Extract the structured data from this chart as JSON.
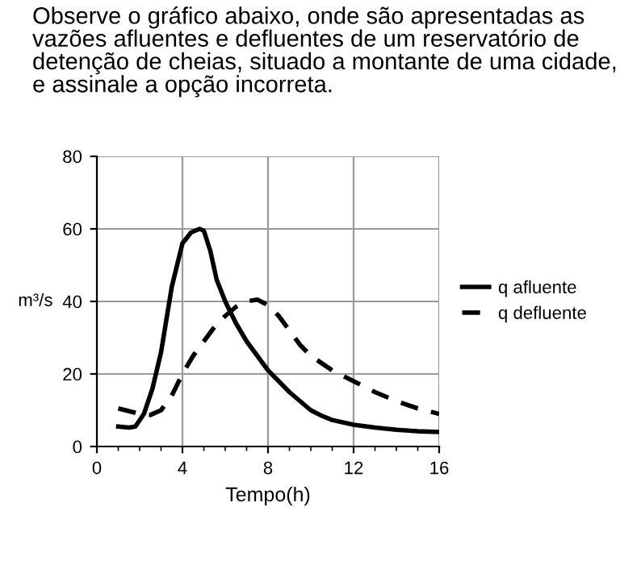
{
  "chart_data": {
    "type": "line",
    "title": "Observe o gráfico abaixo, onde são apresentadas as vazões afluentes e defluentes de um reservatório de detenção de cheias, situado a montante de uma cidade, e assinale a opção incorreta.",
    "xlabel": "Tempo(h)",
    "ylabel": "m³/s",
    "xlim": [
      0,
      16
    ],
    "xticks": [
      0,
      4,
      8,
      12,
      16
    ],
    "ylim": [
      0,
      80
    ],
    "yticks": [
      0,
      20,
      40,
      60,
      80
    ],
    "grid": true,
    "legend": "right",
    "marker": "none",
    "series": [
      {
        "name": "q afluente",
        "color": "#000000",
        "line_style": "solid",
        "x": [
          1,
          1.5,
          1.8,
          2.2,
          2.6,
          3,
          3.5,
          4,
          4.4,
          4.8,
          5,
          5.3,
          5.6,
          6,
          6.5,
          7,
          7.5,
          8,
          8.5,
          9,
          9.5,
          10,
          10.5,
          11,
          12,
          13,
          14,
          15,
          16
        ],
        "values": [
          5.5,
          5.2,
          5.5,
          9,
          16,
          26,
          44,
          56,
          59,
          60,
          59.5,
          54,
          46,
          40,
          34,
          29,
          25,
          21,
          18,
          15,
          12.5,
          10,
          8.5,
          7.3,
          6,
          5.2,
          4.6,
          4.2,
          4
        ]
      },
      {
        "name": "q defluente",
        "color": "#000000",
        "line_style": "dashed",
        "x": [
          1,
          2,
          2.5,
          3,
          3.5,
          4,
          4.5,
          5,
          5.5,
          6,
          6.5,
          7,
          7.5,
          8,
          8.5,
          9,
          9.5,
          10,
          11,
          12,
          13,
          14,
          15,
          16
        ],
        "values": [
          10.5,
          9,
          8.7,
          10,
          14,
          20,
          25,
          29,
          33,
          36,
          38.5,
          40,
          40.5,
          39,
          36,
          32,
          28,
          25,
          21,
          18,
          15,
          12.5,
          10.5,
          9
        ]
      }
    ]
  }
}
